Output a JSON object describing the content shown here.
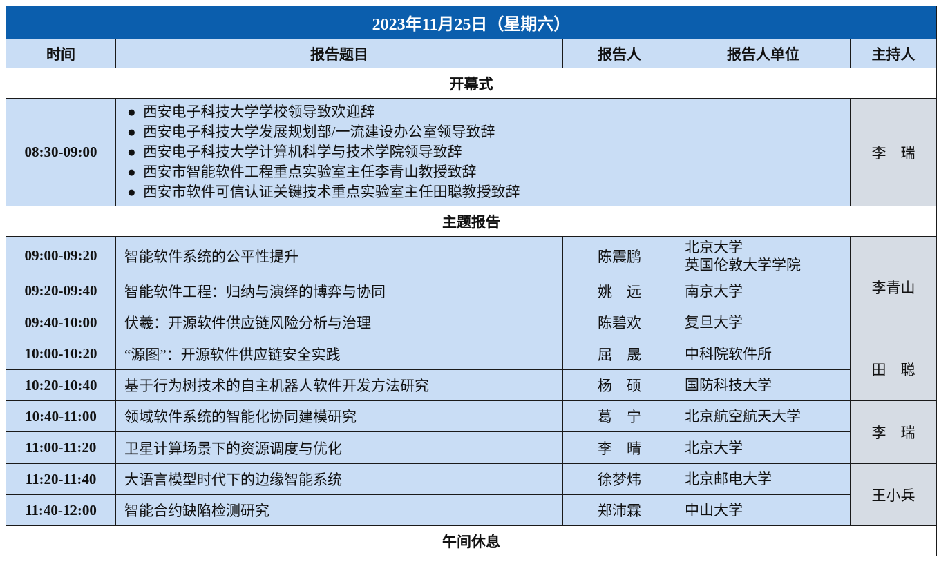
{
  "title": "2023年11月25日（星期六）",
  "headers": [
    "时间",
    "报告题目",
    "报告人",
    "报告人单位",
    "主持人"
  ],
  "sections": {
    "opening": "开幕式",
    "keynote": "主题报告",
    "lunch": "午间休息"
  },
  "opening": {
    "time": "08:30-09:00",
    "items": [
      "西安电子科技大学学校领导致欢迎辞",
      "西安电子科技大学发展规划部/一流建设办公室领导致辞",
      "西安电子科技大学计算机科学与技术学院领导致辞",
      "西安市智能软件工程重点实验室主任李青山教授致辞",
      "西安市软件可信认证关键技术重点实验室主任田聪教授致辞"
    ],
    "host": "李　瑞"
  },
  "talks": [
    {
      "time": "09:00-09:20",
      "topic": "智能软件系统的公平性提升",
      "speaker": "陈震鹏",
      "affiliation": [
        "北京大学",
        "英国伦敦大学学院"
      ]
    },
    {
      "time": "09:20-09:40",
      "topic": "智能软件工程：归纳与演绎的博弈与协同",
      "speaker": "姚　远",
      "affiliation": [
        "南京大学"
      ]
    },
    {
      "time": "09:40-10:00",
      "topic": "伏羲：开源软件供应链风险分析与治理",
      "speaker": "陈碧欢",
      "affiliation": [
        "复旦大学"
      ]
    },
    {
      "time": "10:00-10:20",
      "topic": "“源图”：开源软件供应链安全实践",
      "speaker": "屈　晟",
      "affiliation": [
        "中科院软件所"
      ]
    },
    {
      "time": "10:20-10:40",
      "topic": "基于行为树技术的自主机器人软件开发方法研究",
      "speaker": "杨　硕",
      "affiliation": [
        "国防科技大学"
      ]
    },
    {
      "time": "10:40-11:00",
      "topic": "领域软件系统的智能化协同建模研究",
      "speaker": "葛　宁",
      "affiliation": [
        "北京航空航天大学"
      ]
    },
    {
      "time": "11:00-11:20",
      "topic": "卫星计算场景下的资源调度与优化",
      "speaker": "李　晴",
      "affiliation": [
        "北京大学"
      ]
    },
    {
      "time": "11:20-11:40",
      "topic": "大语言模型时代下的边缘智能系统",
      "speaker": "徐梦炜",
      "affiliation": [
        "北京邮电大学"
      ]
    },
    {
      "time": "11:40-12:00",
      "topic": "智能合约缺陷检测研究",
      "speaker": "郑沛霖",
      "affiliation": [
        "中山大学"
      ]
    }
  ],
  "hosts": [
    "李青山",
    "田　聪",
    "李　瑞",
    "王小兵"
  ],
  "colors": {
    "title_bg": "#0b5ead",
    "cell_blue": "#c9ddf5",
    "host_gray": "#d6dce4"
  }
}
